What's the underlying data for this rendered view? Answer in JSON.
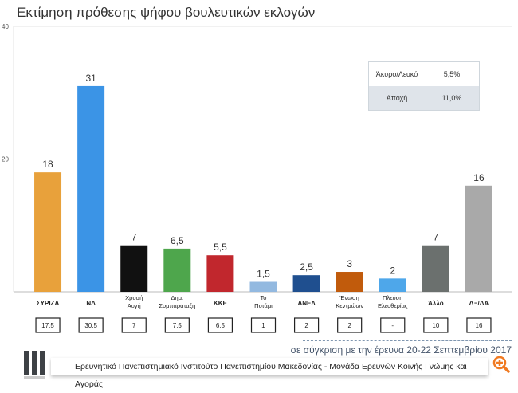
{
  "chart_data": {
    "type": "bar",
    "title": "Εκτίμηση πρόθεσης ψήφου βουλευτικών εκλογών",
    "ylim": [
      0,
      40
    ],
    "yticks": [
      "20",
      "40"
    ],
    "categories": [
      "ΣΥΡΙΖΑ",
      "ΝΔ",
      "Χρυσή Αυγή",
      "Δημ. Συμπαράταξη",
      "ΚΚΕ",
      "Το Ποτάμι",
      "ΑΝΕΛ",
      "Ένωση Κεντρώων",
      "Πλεύση Ελευθερίας",
      "Άλλο",
      "ΔΞ/ΔΑ"
    ],
    "label_lines": [
      [
        "ΣΥΡΙΖΑ"
      ],
      [
        "ΝΔ"
      ],
      [
        "Χρυσή",
        "Αυγή"
      ],
      [
        "Δημ.",
        "Συμπαράταξη"
      ],
      [
        "ΚΚΕ"
      ],
      [
        "Το",
        "Ποτάμι"
      ],
      [
        "ΑΝΕΛ"
      ],
      [
        "Ένωση",
        "Κεντρώων"
      ],
      [
        "Πλεύση",
        "Ελευθερίας"
      ],
      [
        "Άλλο"
      ],
      [
        "ΔΞ/ΔΑ"
      ]
    ],
    "values": [
      18,
      31,
      7,
      6.5,
      5.5,
      1.5,
      2.5,
      3,
      2,
      7,
      16
    ],
    "value_labels": [
      "18",
      "31",
      "7",
      "6,5",
      "5,5",
      "1,5",
      "2,5",
      "3",
      "2",
      "7",
      "16"
    ],
    "previous": [
      "17,5",
      "30,5",
      "7",
      "7,5",
      "6,5",
      "1",
      "2",
      "2",
      "-",
      "10",
      "16"
    ],
    "colors": [
      "#e8a13b",
      "#3b94e6",
      "#111111",
      "#4ea64c",
      "#c1272d",
      "#93b9e0",
      "#1f4f8f",
      "#c15b0c",
      "#4ea7ea",
      "#6b706e",
      "#a9a9a9"
    ]
  },
  "extra_table": [
    {
      "label": "Άκυρο/Λευκό",
      "value": "5,5%"
    },
    {
      "label": "Αποχή",
      "value": "11,0%"
    }
  ],
  "comparison_note": "σε σύγκριση με την έρευνα 20-22 Σεπτεμβρίου 2017",
  "footer": "Ερευνητικό Πανεπιστημιακό Ινστιτούτο Πανεπιστημίου Μακεδονίας - Μονάδα Ερευνών Κοινής Γνώμης και Αγοράς",
  "icons": {
    "zoom": "zoom-in-icon",
    "logo": "institute-logo"
  }
}
